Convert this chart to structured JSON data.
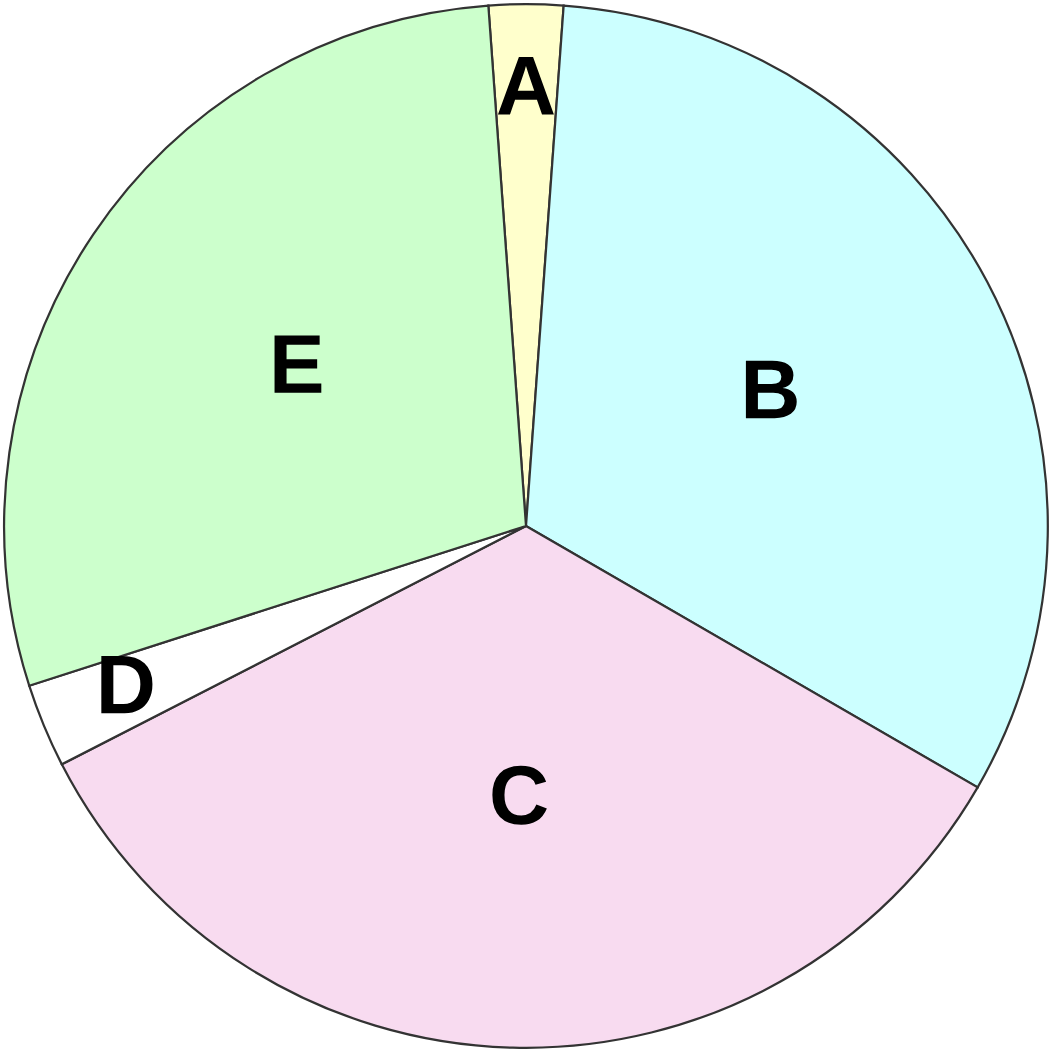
{
  "chart_data": {
    "type": "pie",
    "categories": [
      "A",
      "B",
      "C",
      "D",
      "E"
    ],
    "values": [
      2.3,
      32.2,
      34.1,
      2.6,
      28.8
    ],
    "colors": [
      "#ffffcc",
      "#ccffff",
      "#f8dbf0",
      "#ffffff",
      "#ccffcc"
    ]
  }
}
